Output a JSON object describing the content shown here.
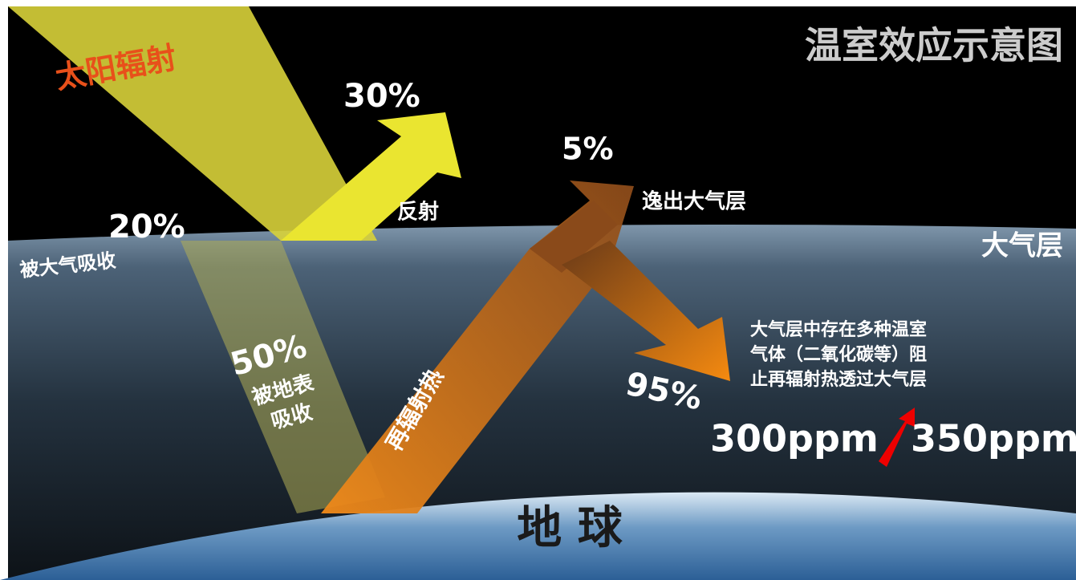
{
  "title": "温室效应示意图",
  "solar": {
    "label": "太阳辐射"
  },
  "reflect": {
    "percent": "30%",
    "label": "反射"
  },
  "escape": {
    "percent": "5%",
    "label": "逸出大气层"
  },
  "atmos_absorb": {
    "percent": "20%",
    "label": "被大气吸收"
  },
  "atmosphere": "大气层",
  "ground_absorb": {
    "percent": "50%",
    "lines": [
      "被地表",
      "吸收"
    ]
  },
  "reradiate": "再辐射热",
  "trapped": {
    "percent": "95%",
    "lines": [
      "大气层中存在多种温室",
      "气体（二氧化碳等）阻",
      "止再辐射热透过大气层"
    ]
  },
  "co2": {
    "from": "300ppm",
    "to": "350ppm"
  },
  "earth": "地 球"
}
